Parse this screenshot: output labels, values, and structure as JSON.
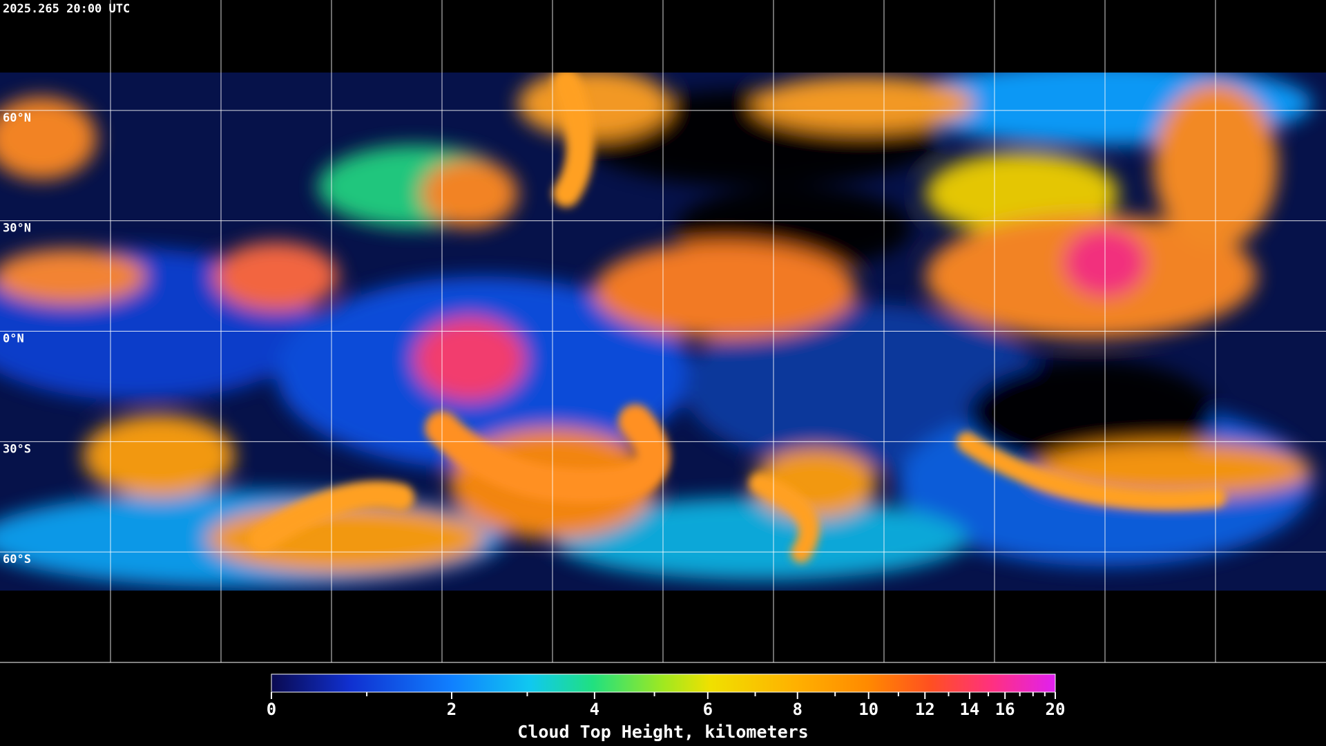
{
  "header": {
    "timestamp": "2025.265 20:00 UTC"
  },
  "map": {
    "lat_labels": [
      {
        "value": 60,
        "label": "60°N"
      },
      {
        "value": 30,
        "label": "30°N"
      },
      {
        "value": 0,
        "label": "0°N"
      },
      {
        "value": -30,
        "label": "30°S"
      },
      {
        "value": -60,
        "label": "60°S"
      }
    ]
  },
  "colorbar": {
    "title": "Cloud Top Height, kilometers",
    "range": [
      0,
      20
    ],
    "ticks": [
      0,
      2,
      4,
      6,
      8,
      10,
      12,
      14,
      16,
      20
    ],
    "minor_ticks": [
      1,
      3,
      5,
      7,
      9,
      11,
      13,
      15,
      17,
      18,
      19
    ]
  }
}
